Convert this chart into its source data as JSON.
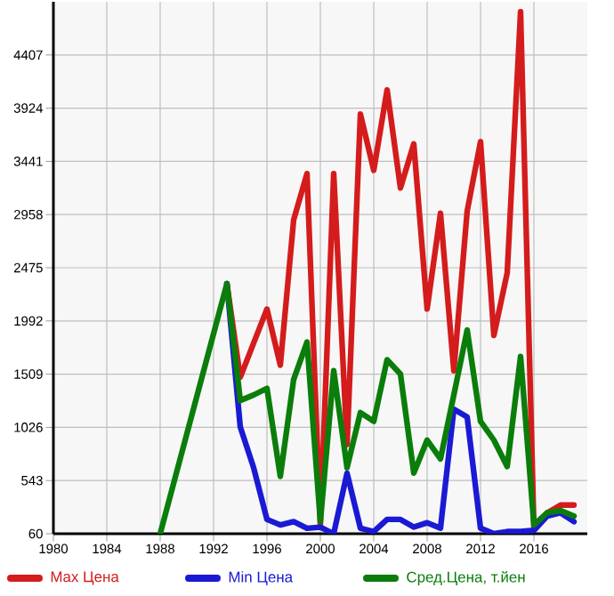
{
  "chart_data": {
    "type": "line",
    "x": [
      1988,
      1993,
      1994,
      1995,
      1996,
      1997,
      1998,
      1999,
      2000,
      2001,
      2002,
      2003,
      2004,
      2005,
      2006,
      2007,
      2008,
      2009,
      2010,
      2011,
      2012,
      2013,
      2014,
      2015,
      2016,
      2017,
      2018,
      2019
    ],
    "series": [
      {
        "name": "Max Цена",
        "color": "#d41c1c",
        "values": [
          null,
          2330,
          1480,
          1790,
          2100,
          1590,
          2910,
          3330,
          140,
          3330,
          870,
          3870,
          3360,
          4090,
          3200,
          3600,
          2100,
          2970,
          1540,
          2990,
          3620,
          1860,
          2430,
          4800,
          110,
          250,
          320,
          320
        ]
      },
      {
        "name": "Min Цена",
        "color": "#1a1ad4",
        "values": [
          null,
          2330,
          1030,
          660,
          190,
          140,
          170,
          110,
          120,
          60,
          610,
          110,
          80,
          190,
          190,
          120,
          160,
          110,
          1190,
          1120,
          110,
          60,
          80,
          80,
          90,
          220,
          250,
          170
        ]
      },
      {
        "name": "Сред.Цена, т.йен",
        "color": "#0a7d0a",
        "values": [
          60,
          2330,
          1270,
          1320,
          1380,
          580,
          1460,
          1800,
          170,
          1540,
          660,
          1160,
          1080,
          1640,
          1510,
          610,
          910,
          740,
          1320,
          1910,
          1080,
          910,
          670,
          1670,
          140,
          250,
          270,
          220
        ]
      }
    ],
    "xlim": [
      1980,
      2020
    ],
    "xticks": [
      1980,
      1984,
      1988,
      1992,
      1996,
      2000,
      2004,
      2008,
      2012,
      2016
    ],
    "ylim": [
      60,
      4890
    ],
    "yticks": [
      60,
      543,
      1026,
      1509,
      1992,
      2475,
      2958,
      3441,
      3924,
      4407
    ],
    "grid": true,
    "legend": "bottom",
    "marker": "none",
    "line_style": "solid"
  }
}
